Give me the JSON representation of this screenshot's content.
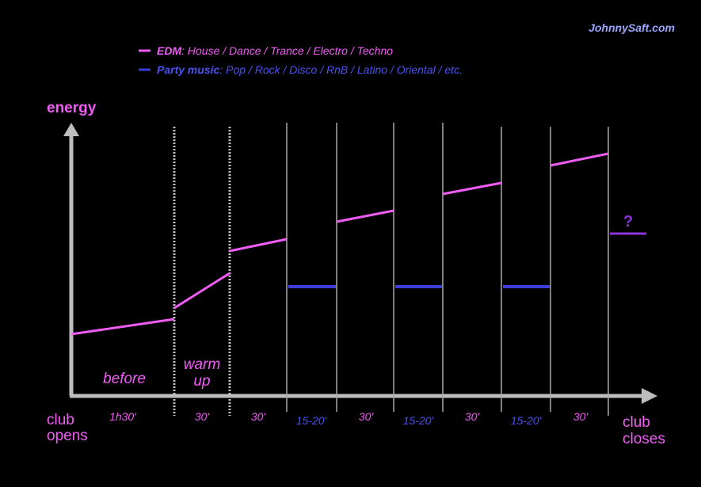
{
  "watermark": "JohnnySaft.com",
  "colors": {
    "edm": "#f05cf5",
    "party": "#3d3ddc",
    "party_text": "#4a52f0",
    "question": "#8f35d8",
    "axis": "#bdbdbd",
    "divider": "#a9a9a9",
    "watermark_text": "#9aa6ff"
  },
  "legend": [
    {
      "name": "EDM",
      "desc": ": House / Dance / Trance / Electro / Techno",
      "color_key": "edm"
    },
    {
      "name": "Party music",
      "desc": ": Pop / Rock / Disco / RnB / Latino / Oriental / etc.",
      "color_key": "party"
    }
  ],
  "axis": {
    "y_label": "energy",
    "x_start_lines": [
      "club",
      "opens"
    ],
    "x_end_lines": [
      "club",
      "closes"
    ]
  },
  "phases": {
    "before": "before",
    "warm_up_lines": [
      "warm",
      "up"
    ]
  },
  "durations": [
    {
      "label": "1h30'",
      "type": "edm"
    },
    {
      "label": "30'",
      "type": "edm"
    },
    {
      "label": "30'",
      "type": "edm"
    },
    {
      "label": "15-20'",
      "type": "party"
    },
    {
      "label": "30'",
      "type": "edm"
    },
    {
      "label": "15-20'",
      "type": "party"
    },
    {
      "label": "30'",
      "type": "edm"
    },
    {
      "label": "15-20'",
      "type": "party"
    },
    {
      "label": "30'",
      "type": "edm"
    }
  ],
  "unknown_marker": "?"
}
